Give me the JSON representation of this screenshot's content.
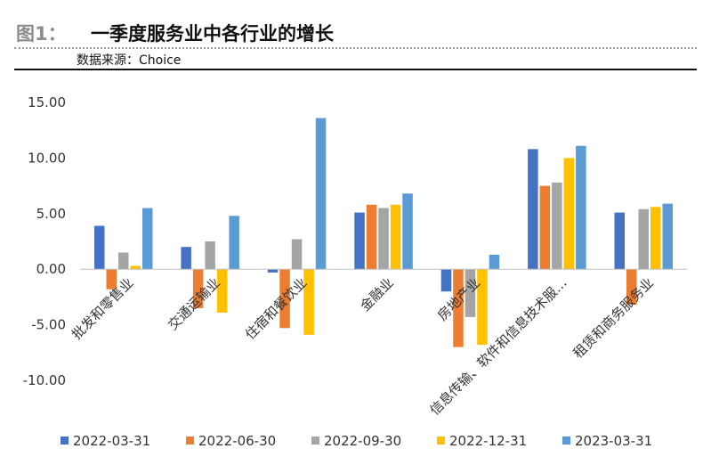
{
  "figure": {
    "label": "图1：",
    "title": "一季度服务业中各行业的增长",
    "source": "数据来源：Choice"
  },
  "chart_data": {
    "type": "bar",
    "categories": [
      "批发和零售业",
      "交通运输业",
      "住宿和餐饮业",
      "金融业",
      "房地产业",
      "信息传输、软件和信息技术服…",
      "租赁和商务服务业"
    ],
    "series": [
      {
        "name": "2022-03-31",
        "color": "#4472c4",
        "values": [
          3.9,
          2.0,
          -0.3,
          5.1,
          -2.0,
          10.8,
          5.1
        ]
      },
      {
        "name": "2022-06-30",
        "color": "#ed7d31",
        "values": [
          -1.8,
          -3.5,
          -5.3,
          5.8,
          -7.0,
          7.5,
          -3.2
        ]
      },
      {
        "name": "2022-09-30",
        "color": "#a5a5a5",
        "values": [
          1.5,
          2.5,
          2.7,
          5.5,
          -4.3,
          7.8,
          5.4
        ]
      },
      {
        "name": "2022-12-31",
        "color": "#ffc000",
        "values": [
          0.3,
          -3.9,
          -5.9,
          5.8,
          -6.8,
          10.0,
          5.6
        ]
      },
      {
        "name": "2023-03-31",
        "color": "#5b9bd5",
        "values": [
          5.5,
          4.8,
          13.6,
          6.8,
          1.3,
          11.1,
          5.9
        ]
      }
    ],
    "yticks": [
      "15.00",
      "10.00",
      "5.00",
      "0.00",
      "-5.00",
      "-10.00"
    ],
    "ylim": [
      -10,
      15
    ],
    "xlabel": "",
    "ylabel": "",
    "grid": false,
    "legend_position": "bottom"
  }
}
